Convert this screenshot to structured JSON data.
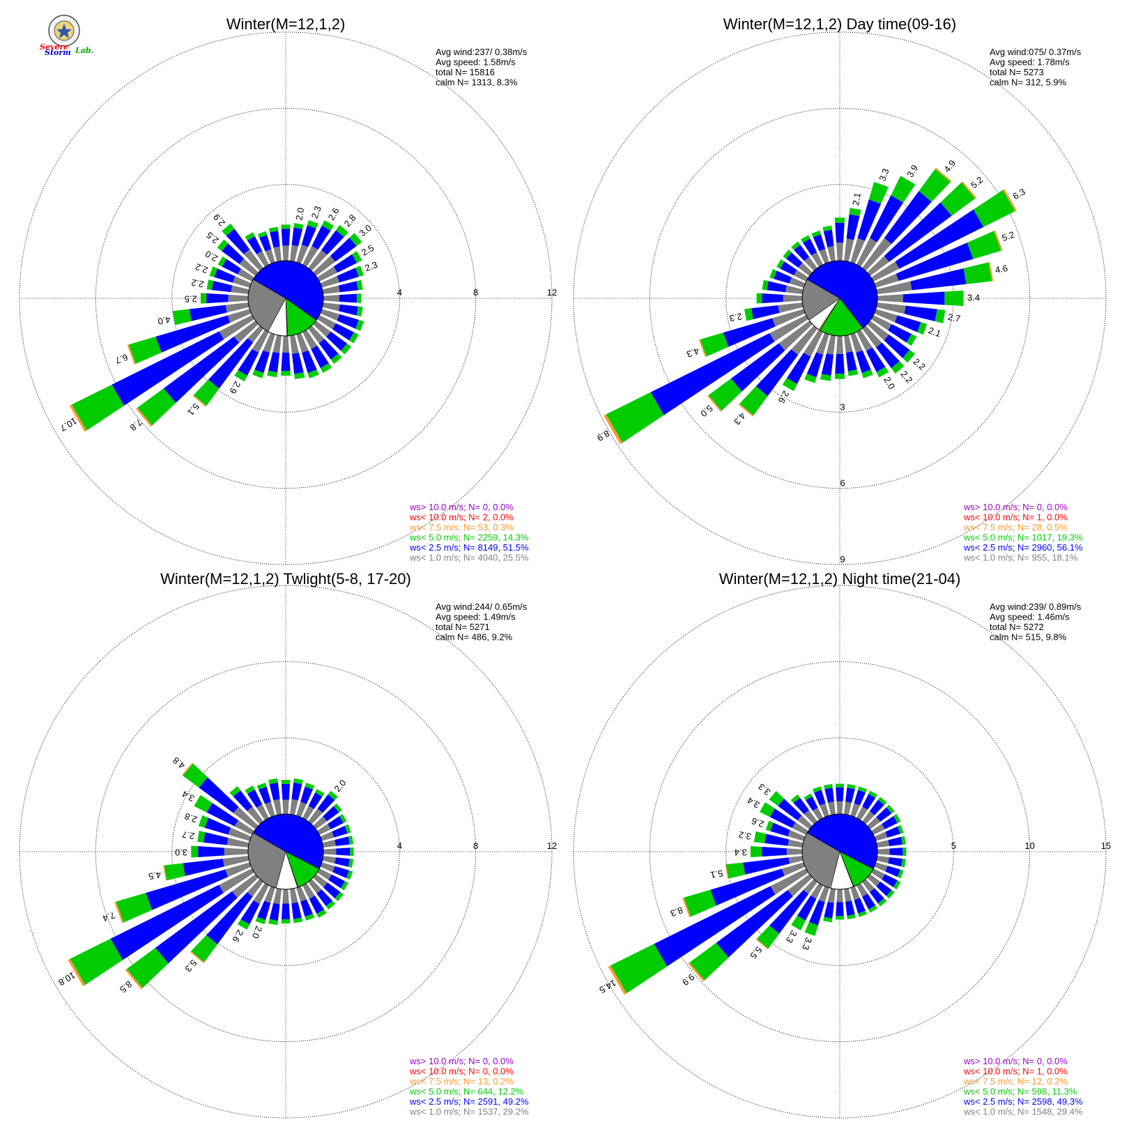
{
  "colors": {
    "calm": "#ffffff",
    "ws_gt_10": "#9900cc",
    "ws_lt_10": "#ff0000",
    "ws_lt_7_5": "#ff9933",
    "ws_lt_5": "#00cc00",
    "ws_lt_2_5": "#0000ff",
    "ws_lt_1": "#808080",
    "grid": "#000000"
  },
  "logo": {
    "text_1": "Severe",
    "text_2": "Storm",
    "text_3": "Lab."
  },
  "chart_data": [
    {
      "type": "wind-rose",
      "title": "Winter(M=12,1,2)",
      "rmax": 12,
      "ring_ticks": [
        "4",
        "8",
        "12"
      ],
      "ring_tick_position": "east",
      "info": [
        "Avg wind:237/ 0.38m/s",
        "Avg speed: 1.58m/s",
        "total N=       15816",
        "calm N=   1313,   8.3%"
      ],
      "legend": [
        {
          "text": "ws> 10.0 m/s; N=     0,  0.0%",
          "color_key": "ws_gt_10"
        },
        {
          "text": "ws< 10.0 m/s; N=     2,  0.0%",
          "color_key": "ws_lt_10"
        },
        {
          "text": "ws<  7.5 m/s; N=    53,  0.3%",
          "color_key": "ws_lt_7_5"
        },
        {
          "text": "ws<  5.0 m/s; N=  2259, 14.3%",
          "color_key": "ws_lt_5"
        },
        {
          "text": "ws<  2.5 m/s; N=  8149, 51.5%",
          "color_key": "ws_lt_2_5"
        },
        {
          "text": "ws<  1.0 m/s; N=  4040, 25.5%",
          "color_key": "ws_lt_1"
        }
      ],
      "pie_percent": {
        "calm": 8.3,
        "ws_lt_1": 25.5,
        "ws_lt_2_5": 51.5,
        "ws_lt_5": 14.3,
        "ws_lt_7_5": 0.3,
        "ws_lt_10": 0.0,
        "ws_gt_10": 0.0
      },
      "sectors": [
        {
          "dir": 0,
          "total": 1.9
        },
        {
          "dir": 10,
          "total": 2.0,
          "label": "2.0"
        },
        {
          "dir": 20,
          "total": 2.3,
          "label": "2.3"
        },
        {
          "dir": 30,
          "total": 2.6,
          "label": "2.6"
        },
        {
          "dir": 40,
          "total": 2.8,
          "label": "2.8"
        },
        {
          "dir": 50,
          "total": 3.0,
          "label": "3.0"
        },
        {
          "dir": 60,
          "total": 2.5,
          "label": "2.5"
        },
        {
          "dir": 70,
          "total": 2.3,
          "label": "2.3"
        },
        {
          "dir": 80,
          "total": 2.1
        },
        {
          "dir": 90,
          "total": 2.0
        },
        {
          "dir": 100,
          "total": 2.1
        },
        {
          "dir": 110,
          "total": 2.3
        },
        {
          "dir": 120,
          "total": 2.3
        },
        {
          "dir": 130,
          "total": 2.3
        },
        {
          "dir": 140,
          "total": 2.3
        },
        {
          "dir": 150,
          "total": 2.4
        },
        {
          "dir": 160,
          "total": 2.4
        },
        {
          "dir": 170,
          "total": 2.3
        },
        {
          "dir": 180,
          "total": 2.1
        },
        {
          "dir": 190,
          "total": 2.2
        },
        {
          "dir": 200,
          "total": 2.4
        },
        {
          "dir": 210,
          "total": 2.9,
          "label": "2.9"
        },
        {
          "dir": 220,
          "total": 5.1,
          "label": "5.1"
        },
        {
          "dir": 230,
          "total": 7.8,
          "label": "7.8"
        },
        {
          "dir": 240,
          "total": 10.7,
          "label": "10.7"
        },
        {
          "dir": 250,
          "total": 6.7,
          "label": "6.7"
        },
        {
          "dir": 260,
          "total": 4.0,
          "label": "4.0"
        },
        {
          "dir": 270,
          "total": 2.5,
          "label": "2.5"
        },
        {
          "dir": 280,
          "total": 2.2,
          "label": "2.2"
        },
        {
          "dir": 290,
          "total": 2.2,
          "label": "2.2"
        },
        {
          "dir": 300,
          "total": 2.0,
          "label": "2.0"
        },
        {
          "dir": 310,
          "total": 2.5,
          "label": "2.5"
        },
        {
          "dir": 320,
          "total": 2.9,
          "label": "2.9"
        },
        {
          "dir": 330,
          "total": 1.9
        },
        {
          "dir": 340,
          "total": 1.7
        },
        {
          "dir": 350,
          "total": 1.8
        }
      ]
    },
    {
      "type": "wind-rose",
      "title": "Winter(M=12,1,2) Day time(09-16)",
      "rmax": 9,
      "ring_ticks": [
        "3",
        "6",
        "9"
      ],
      "ring_tick_position": "south",
      "info": [
        "Avg wind:075/ 0.37m/s",
        "Avg speed: 1.78m/s",
        "total N=        5273",
        "calm N=    312,   5.9%"
      ],
      "legend": [
        {
          "text": "ws> 10.0 m/s; N=     0,  0.0%",
          "color_key": "ws_gt_10"
        },
        {
          "text": "ws< 10.0 m/s; N=     1,  0.0%",
          "color_key": "ws_lt_10"
        },
        {
          "text": "ws<  7.5 m/s; N=    28,  0.5%",
          "color_key": "ws_lt_7_5"
        },
        {
          "text": "ws<  5.0 m/s; N=  1017, 19.3%",
          "color_key": "ws_lt_5"
        },
        {
          "text": "ws<  2.5 m/s; N=  2960, 56.1%",
          "color_key": "ws_lt_2_5"
        },
        {
          "text": "ws<  1.0 m/s; N=   955, 18.1%",
          "color_key": "ws_lt_1"
        }
      ],
      "pie_percent": {
        "calm": 5.9,
        "ws_lt_1": 18.1,
        "ws_lt_2_5": 56.1,
        "ws_lt_5": 19.3,
        "ws_lt_7_5": 0.5,
        "ws_lt_10": 0.0,
        "ws_gt_10": 0.0
      },
      "sectors": [
        {
          "dir": 0,
          "total": 1.7
        },
        {
          "dir": 10,
          "total": 2.1,
          "label": "2.1"
        },
        {
          "dir": 20,
          "total": 3.3,
          "label": "3.3"
        },
        {
          "dir": 30,
          "total": 3.9,
          "label": "3.9"
        },
        {
          "dir": 40,
          "total": 4.9,
          "label": "4.9"
        },
        {
          "dir": 50,
          "total": 5.2,
          "label": "5.2"
        },
        {
          "dir": 60,
          "total": 6.3,
          "label": "6.3"
        },
        {
          "dir": 70,
          "total": 5.2,
          "label": "5.2"
        },
        {
          "dir": 80,
          "total": 4.6,
          "label": "4.6"
        },
        {
          "dir": 90,
          "total": 3.4,
          "label": "3.4"
        },
        {
          "dir": 100,
          "total": 2.7,
          "label": "2.7"
        },
        {
          "dir": 110,
          "total": 2.1,
          "label": "2.1"
        },
        {
          "dir": 120,
          "total": 1.9
        },
        {
          "dir": 130,
          "total": 2.2,
          "label": "2.2"
        },
        {
          "dir": 140,
          "total": 2.2,
          "label": "2.2"
        },
        {
          "dir": 150,
          "total": 2.0,
          "label": "2.0"
        },
        {
          "dir": 160,
          "total": 1.8
        },
        {
          "dir": 170,
          "total": 1.6
        },
        {
          "dir": 180,
          "total": 1.7
        },
        {
          "dir": 190,
          "total": 1.8
        },
        {
          "dir": 200,
          "total": 2.0
        },
        {
          "dir": 210,
          "total": 2.6,
          "label": "2.6"
        },
        {
          "dir": 220,
          "total": 4.3,
          "label": "4.3"
        },
        {
          "dir": 230,
          "total": 5.0,
          "label": "5.0"
        },
        {
          "dir": 240,
          "total": 8.9,
          "label": "8.9"
        },
        {
          "dir": 250,
          "total": 4.3,
          "label": "4.3"
        },
        {
          "dir": 260,
          "total": 2.3,
          "label": "2.3"
        },
        {
          "dir": 270,
          "total": 1.8
        },
        {
          "dir": 280,
          "total": 1.6
        },
        {
          "dir": 290,
          "total": 1.4
        },
        {
          "dir": 300,
          "total": 1.3
        },
        {
          "dir": 310,
          "total": 1.3
        },
        {
          "dir": 320,
          "total": 1.3
        },
        {
          "dir": 330,
          "total": 1.3
        },
        {
          "dir": 340,
          "total": 1.3
        },
        {
          "dir": 350,
          "total": 1.4
        }
      ]
    },
    {
      "type": "wind-rose",
      "title": "Winter(M=12,1,2) Twlight(5-8, 17-20)",
      "rmax": 12,
      "ring_ticks": [
        "4",
        "8",
        "12"
      ],
      "ring_tick_position": "east",
      "info": [
        "Avg wind:244/ 0.65m/s",
        "Avg speed: 1.49m/s",
        "total N=        5271",
        "calm N=    486,   9.2%"
      ],
      "legend": [
        {
          "text": "ws> 10.0 m/s; N=     0,  0.0%",
          "color_key": "ws_gt_10"
        },
        {
          "text": "ws< 10.0 m/s; N=     0,  0.0%",
          "color_key": "ws_lt_10"
        },
        {
          "text": "ws<  7.5 m/s; N=    13,  0.2%",
          "color_key": "ws_lt_7_5"
        },
        {
          "text": "ws<  5.0 m/s; N=   644, 12.2%",
          "color_key": "ws_lt_5"
        },
        {
          "text": "ws<  2.5 m/s; N=  2591, 49.2%",
          "color_key": "ws_lt_2_5"
        },
        {
          "text": "ws<  1.0 m/s; N=  1537, 29.2%",
          "color_key": "ws_lt_1"
        }
      ],
      "pie_percent": {
        "calm": 9.2,
        "ws_lt_1": 29.2,
        "ws_lt_2_5": 49.2,
        "ws_lt_5": 12.2,
        "ws_lt_7_5": 0.2,
        "ws_lt_10": 0.0,
        "ws_gt_10": 0.0
      },
      "sectors": [
        {
          "dir": 0,
          "total": 1.8
        },
        {
          "dir": 10,
          "total": 1.9
        },
        {
          "dir": 20,
          "total": 1.8
        },
        {
          "dir": 30,
          "total": 1.7
        },
        {
          "dir": 40,
          "total": 2.0,
          "label": "2.0"
        },
        {
          "dir": 50,
          "total": 1.7
        },
        {
          "dir": 60,
          "total": 1.6
        },
        {
          "dir": 70,
          "total": 1.6
        },
        {
          "dir": 80,
          "total": 1.6
        },
        {
          "dir": 90,
          "total": 1.6
        },
        {
          "dir": 100,
          "total": 1.6
        },
        {
          "dir": 110,
          "total": 1.7
        },
        {
          "dir": 120,
          "total": 1.7
        },
        {
          "dir": 130,
          "total": 1.8
        },
        {
          "dir": 140,
          "total": 1.8
        },
        {
          "dir": 150,
          "total": 1.9
        },
        {
          "dir": 160,
          "total": 1.8
        },
        {
          "dir": 170,
          "total": 1.8
        },
        {
          "dir": 180,
          "total": 1.8
        },
        {
          "dir": 190,
          "total": 1.9
        },
        {
          "dir": 200,
          "total": 2.0,
          "label": "2.0"
        },
        {
          "dir": 210,
          "total": 2.6,
          "label": "2.6"
        },
        {
          "dir": 220,
          "total": 5.3,
          "label": "5.3"
        },
        {
          "dir": 230,
          "total": 8.5,
          "label": "8.5"
        },
        {
          "dir": 240,
          "total": 10.8,
          "label": "10.8"
        },
        {
          "dir": 250,
          "total": 7.4,
          "label": "7.4"
        },
        {
          "dir": 260,
          "total": 4.5,
          "label": "4.5"
        },
        {
          "dir": 270,
          "total": 3.0,
          "label": "3.0"
        },
        {
          "dir": 280,
          "total": 2.7,
          "label": "2.7"
        },
        {
          "dir": 290,
          "total": 2.8,
          "label": "2.8"
        },
        {
          "dir": 300,
          "total": 3.4,
          "label": "3.4"
        },
        {
          "dir": 310,
          "total": 4.8,
          "label": "4.8"
        },
        {
          "dir": 320,
          "total": 2.3
        },
        {
          "dir": 330,
          "total": 1.9
        },
        {
          "dir": 340,
          "total": 1.8
        },
        {
          "dir": 350,
          "total": 1.9
        }
      ]
    },
    {
      "type": "wind-rose",
      "title": "Winter(M=12,1,2) Night time(21-04)",
      "rmax": 15,
      "ring_ticks": [
        "5",
        "10",
        "15"
      ],
      "ring_tick_position": "east",
      "info": [
        "Avg wind:239/ 0.89m/s",
        "Avg speed: 1.46m/s",
        "total N=        5272",
        "calm N=    515,   9.8%"
      ],
      "legend": [
        {
          "text": "ws> 10.0 m/s; N=     0,  0.0%",
          "color_key": "ws_gt_10"
        },
        {
          "text": "ws< 10.0 m/s; N=     1,  0.0%",
          "color_key": "ws_lt_10"
        },
        {
          "text": "ws<  7.5 m/s; N=    12,  0.2%",
          "color_key": "ws_lt_7_5"
        },
        {
          "text": "ws<  5.0 m/s; N=   598, 11.3%",
          "color_key": "ws_lt_5"
        },
        {
          "text": "ws<  2.5 m/s; N=  2598, 49.3%",
          "color_key": "ws_lt_2_5"
        },
        {
          "text": "ws<  1.0 m/s; N=  1548, 29.4%",
          "color_key": "ws_lt_1"
        }
      ],
      "pie_percent": {
        "calm": 9.8,
        "ws_lt_1": 29.4,
        "ws_lt_2_5": 49.3,
        "ws_lt_5": 11.3,
        "ws_lt_7_5": 0.2,
        "ws_lt_10": 0.0,
        "ws_gt_10": 0.0
      },
      "sectors": [
        {
          "dir": 0,
          "total": 2.0
        },
        {
          "dir": 10,
          "total": 2.0
        },
        {
          "dir": 20,
          "total": 2.0
        },
        {
          "dir": 30,
          "total": 2.0
        },
        {
          "dir": 40,
          "total": 2.0
        },
        {
          "dir": 50,
          "total": 2.0
        },
        {
          "dir": 60,
          "total": 2.0
        },
        {
          "dir": 70,
          "total": 1.9
        },
        {
          "dir": 80,
          "total": 1.9
        },
        {
          "dir": 90,
          "total": 1.9
        },
        {
          "dir": 100,
          "total": 1.9
        },
        {
          "dir": 110,
          "total": 1.9
        },
        {
          "dir": 120,
          "total": 2.0
        },
        {
          "dir": 130,
          "total": 2.0
        },
        {
          "dir": 140,
          "total": 2.0
        },
        {
          "dir": 150,
          "total": 2.0
        },
        {
          "dir": 160,
          "total": 2.0
        },
        {
          "dir": 170,
          "total": 2.0
        },
        {
          "dir": 180,
          "total": 2.0
        },
        {
          "dir": 190,
          "total": 2.2
        },
        {
          "dir": 200,
          "total": 3.3,
          "label": "3.3"
        },
        {
          "dir": 210,
          "total": 3.3,
          "label": "3.3"
        },
        {
          "dir": 220,
          "total": 5.5,
          "label": "5.5"
        },
        {
          "dir": 230,
          "total": 9.9,
          "label": "9.9"
        },
        {
          "dir": 240,
          "total": 14.5,
          "label": "14.5"
        },
        {
          "dir": 250,
          "total": 8.3,
          "label": "8.3"
        },
        {
          "dir": 260,
          "total": 5.1,
          "label": "5.1"
        },
        {
          "dir": 270,
          "total": 3.4,
          "label": "3.4"
        },
        {
          "dir": 280,
          "total": 3.2,
          "label": "3.2"
        },
        {
          "dir": 290,
          "total": 2.6,
          "label": "2.6"
        },
        {
          "dir": 300,
          "total": 3.4,
          "label": "3.4"
        },
        {
          "dir": 310,
          "total": 3.3,
          "label": "3.3"
        },
        {
          "dir": 320,
          "total": 2.2
        },
        {
          "dir": 330,
          "total": 1.8
        },
        {
          "dir": 340,
          "total": 2.0
        },
        {
          "dir": 350,
          "total": 2.0
        }
      ]
    }
  ]
}
